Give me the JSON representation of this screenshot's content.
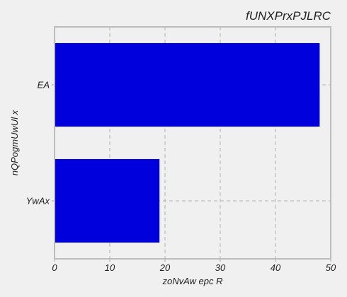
{
  "chart_data": {
    "type": "bar",
    "orientation": "horizontal",
    "title": "fUNXPrxPJLRC",
    "xlabel": "zoNvAw epc   R",
    "ylabel": "nQPogmUwUl x",
    "categories": [
      "EA",
      "YwAx"
    ],
    "values": [
      48,
      19
    ],
    "xlim": [
      0,
      50
    ],
    "xticks": [
      0,
      10,
      20,
      30,
      40,
      50
    ],
    "grid": true,
    "bar_color": "#0000dd",
    "background": "#f0f0f0",
    "grid_color": "#b0b0b0"
  }
}
